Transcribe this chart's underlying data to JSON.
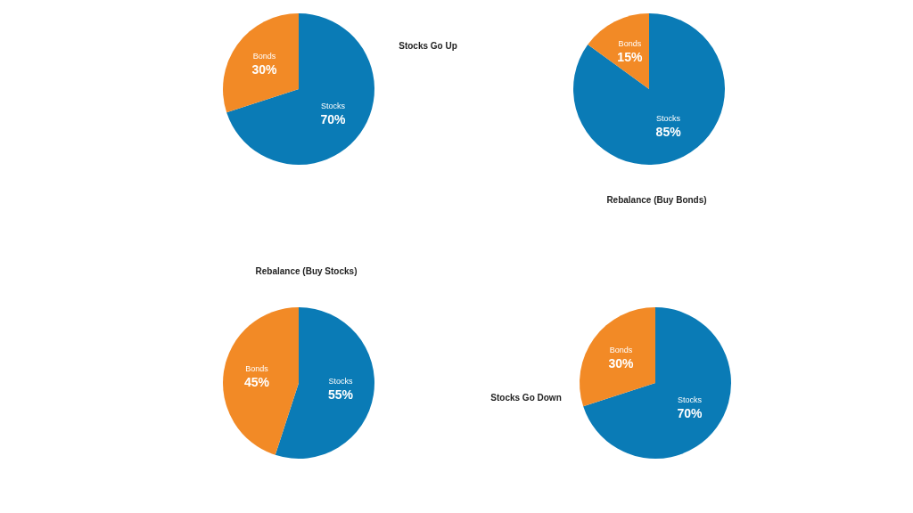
{
  "chart_data": [
    {
      "type": "pie",
      "categories": [
        "Stocks",
        "Bonds"
      ],
      "values": [
        70,
        30
      ],
      "colors": [
        "#0a7bb6",
        "#f28a26"
      ],
      "value_labels": [
        "70%",
        "30%"
      ],
      "annotations": [
        "Stocks Go Up"
      ]
    },
    {
      "type": "pie",
      "categories": [
        "Stocks",
        "Bonds"
      ],
      "values": [
        85,
        15
      ],
      "colors": [
        "#0a7bb6",
        "#f28a26"
      ],
      "value_labels": [
        "85%",
        "15%"
      ],
      "annotations": [
        "Rebalance (Buy Bonds)"
      ]
    },
    {
      "type": "pie",
      "categories": [
        "Stocks",
        "Bonds"
      ],
      "values": [
        55,
        45
      ],
      "colors": [
        "#0a7bb6",
        "#f28a26"
      ],
      "value_labels": [
        "55%",
        "45%"
      ],
      "annotations": [
        "Rebalance (Buy Stocks)"
      ]
    },
    {
      "type": "pie",
      "categories": [
        "Stocks",
        "Bonds"
      ],
      "values": [
        70,
        30
      ],
      "colors": [
        "#0a7bb6",
        "#f28a26"
      ],
      "value_labels": [
        "70%",
        "30%"
      ],
      "annotations": [
        "Stocks Go Down"
      ]
    }
  ]
}
